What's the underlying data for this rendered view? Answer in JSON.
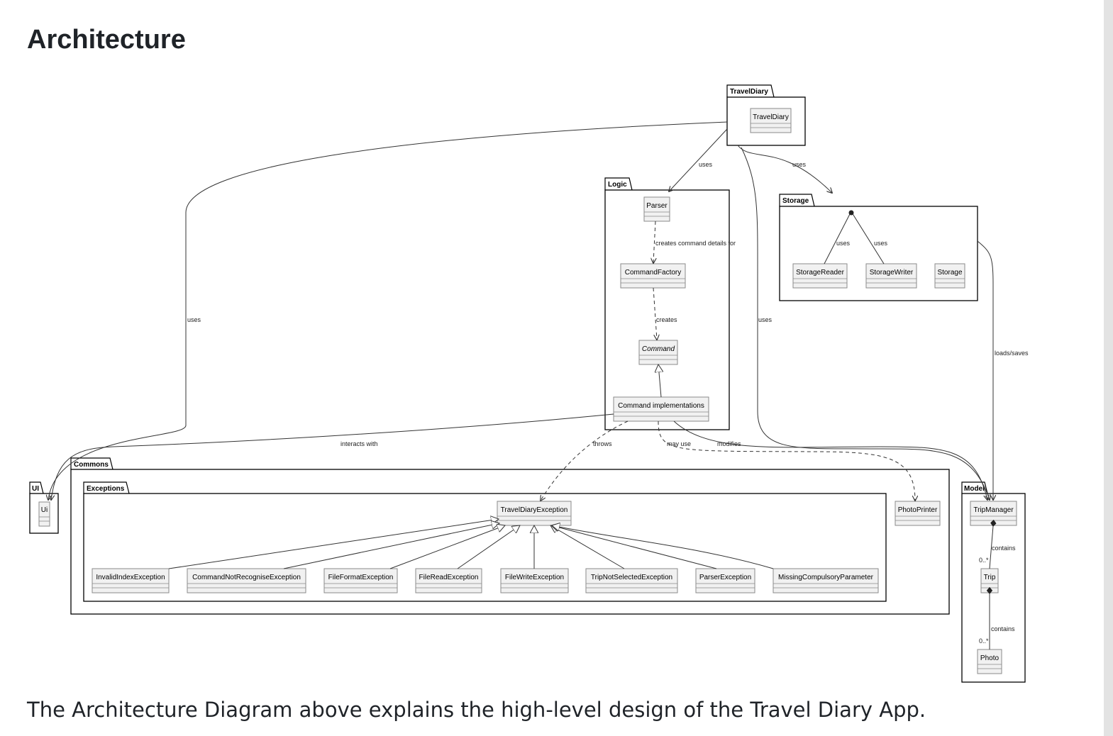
{
  "heading": "Architecture",
  "caption": "The Architecture Diagram above explains the high-level design of the Travel Diary App.",
  "diagram": {
    "packages": {
      "traveldiary": "TravelDiary",
      "logic": "Logic",
      "storage": "Storage",
      "commons": "Commons",
      "exceptions": "Exceptions",
      "ui": "UI",
      "model": "Model"
    },
    "classes": {
      "traveldiary": "TravelDiary",
      "parser": "Parser",
      "commandfactory": "CommandFactory",
      "command": "Command",
      "commandimpl": "Command implementations",
      "storagereader": "StorageReader",
      "storagewriter": "StorageWriter",
      "storage": "Storage",
      "ui": "Ui",
      "traveldiaryexception": "TravelDiaryException",
      "photoprinter": "PhotoPrinter",
      "invalidindex": "InvalidIndexException",
      "cmdnotrecognise": "CommandNotRecogniseException",
      "fileformat": "FileFormatException",
      "fileread": "FileReadException",
      "filewrite": "FileWriteException",
      "tripnotselected": "TripNotSelectedException",
      "parserexception": "ParserException",
      "missingparam": "MissingCompulsoryParameter",
      "tripmanager": "TripManager",
      "trip": "Trip",
      "photo": "Photo"
    },
    "edge_labels": {
      "uses_parser": "uses",
      "uses_storage": "uses",
      "uses_ui": "uses",
      "uses_model": "uses",
      "creates_details": "creates command details for",
      "creates": "creates",
      "storage_uses_reader": "uses",
      "storage_uses_writer": "uses",
      "loads_saves": "loads/saves",
      "interacts_with": "interacts with",
      "throws": "throws",
      "may_use": "may use",
      "modifies": "modifies",
      "contains_trip": "contains",
      "contains_photo": "contains",
      "mult_trip": "0..*",
      "mult_photo": "0..*"
    }
  }
}
